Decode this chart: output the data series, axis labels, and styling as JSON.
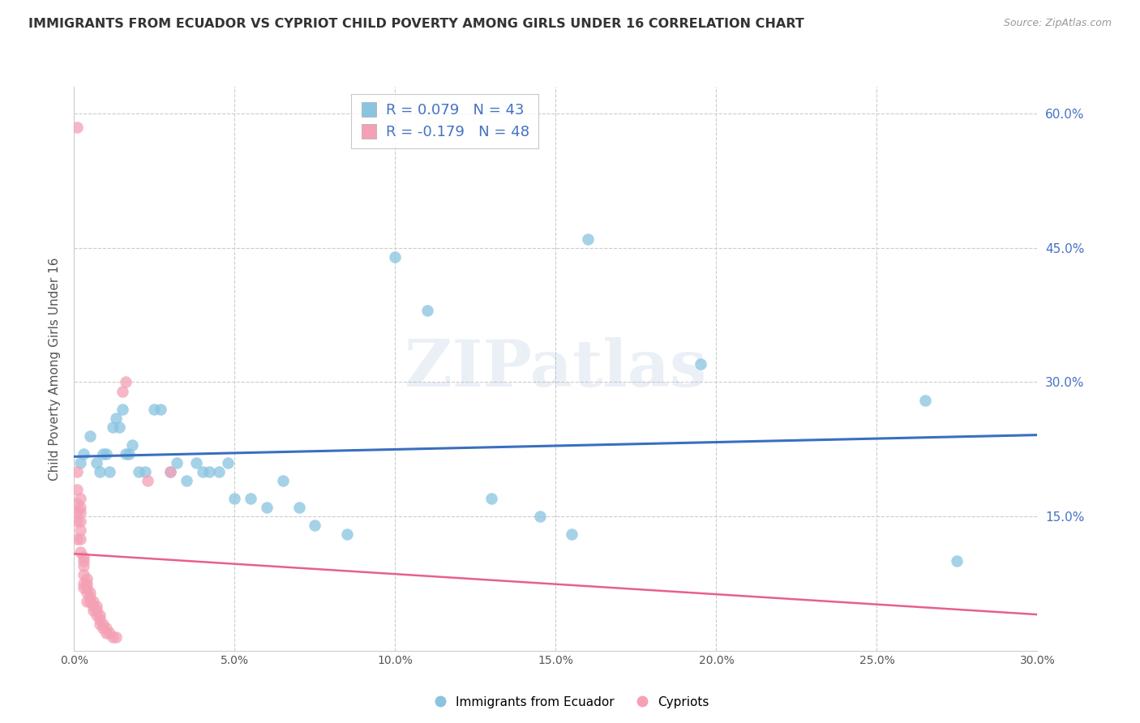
{
  "title": "IMMIGRANTS FROM ECUADOR VS CYPRIOT CHILD POVERTY AMONG GIRLS UNDER 16 CORRELATION CHART",
  "source": "Source: ZipAtlas.com",
  "ylabel": "Child Poverty Among Girls Under 16",
  "xlim": [
    0.0,
    0.3
  ],
  "ylim": [
    0.0,
    0.63
  ],
  "yticks_right": [
    0.15,
    0.3,
    0.45,
    0.6
  ],
  "xticks": [
    0.0,
    0.05,
    0.1,
    0.15,
    0.2,
    0.25,
    0.3
  ],
  "blue_color": "#89c4e1",
  "pink_color": "#f4a0b5",
  "blue_line_color": "#3a6fbf",
  "pink_line_color": "#e8608a",
  "R_blue": 0.079,
  "N_blue": 43,
  "R_pink": -0.179,
  "N_pink": 48,
  "legend_label_blue": "Immigrants from Ecuador",
  "legend_label_pink": "Cypriots",
  "watermark": "ZIPatlas",
  "blue_x": [
    0.002,
    0.003,
    0.005,
    0.007,
    0.008,
    0.009,
    0.01,
    0.011,
    0.012,
    0.013,
    0.014,
    0.015,
    0.016,
    0.017,
    0.018,
    0.02,
    0.022,
    0.025,
    0.027,
    0.03,
    0.032,
    0.035,
    0.038,
    0.04,
    0.042,
    0.045,
    0.048,
    0.05,
    0.055,
    0.06,
    0.065,
    0.07,
    0.075,
    0.085,
    0.1,
    0.11,
    0.13,
    0.145,
    0.155,
    0.16,
    0.195,
    0.265,
    0.275
  ],
  "blue_y": [
    0.21,
    0.22,
    0.24,
    0.21,
    0.2,
    0.22,
    0.22,
    0.2,
    0.25,
    0.26,
    0.25,
    0.27,
    0.22,
    0.22,
    0.23,
    0.2,
    0.2,
    0.27,
    0.27,
    0.2,
    0.21,
    0.19,
    0.21,
    0.2,
    0.2,
    0.2,
    0.21,
    0.17,
    0.17,
    0.16,
    0.19,
    0.16,
    0.14,
    0.13,
    0.44,
    0.38,
    0.17,
    0.15,
    0.13,
    0.46,
    0.32,
    0.28,
    0.1
  ],
  "pink_x": [
    0.001,
    0.001,
    0.001,
    0.001,
    0.001,
    0.001,
    0.001,
    0.002,
    0.002,
    0.002,
    0.002,
    0.002,
    0.002,
    0.002,
    0.003,
    0.003,
    0.003,
    0.003,
    0.003,
    0.003,
    0.004,
    0.004,
    0.004,
    0.004,
    0.004,
    0.005,
    0.005,
    0.005,
    0.006,
    0.006,
    0.006,
    0.007,
    0.007,
    0.007,
    0.008,
    0.008,
    0.008,
    0.009,
    0.009,
    0.01,
    0.01,
    0.011,
    0.012,
    0.013,
    0.015,
    0.016,
    0.023,
    0.03
  ],
  "pink_y": [
    0.585,
    0.2,
    0.18,
    0.165,
    0.155,
    0.145,
    0.125,
    0.17,
    0.16,
    0.155,
    0.145,
    0.135,
    0.125,
    0.11,
    0.105,
    0.1,
    0.095,
    0.085,
    0.075,
    0.07,
    0.08,
    0.075,
    0.07,
    0.065,
    0.055,
    0.065,
    0.06,
    0.055,
    0.055,
    0.05,
    0.045,
    0.05,
    0.045,
    0.04,
    0.04,
    0.035,
    0.03,
    0.03,
    0.025,
    0.025,
    0.02,
    0.02,
    0.015,
    0.015,
    0.29,
    0.3,
    0.19,
    0.2
  ]
}
